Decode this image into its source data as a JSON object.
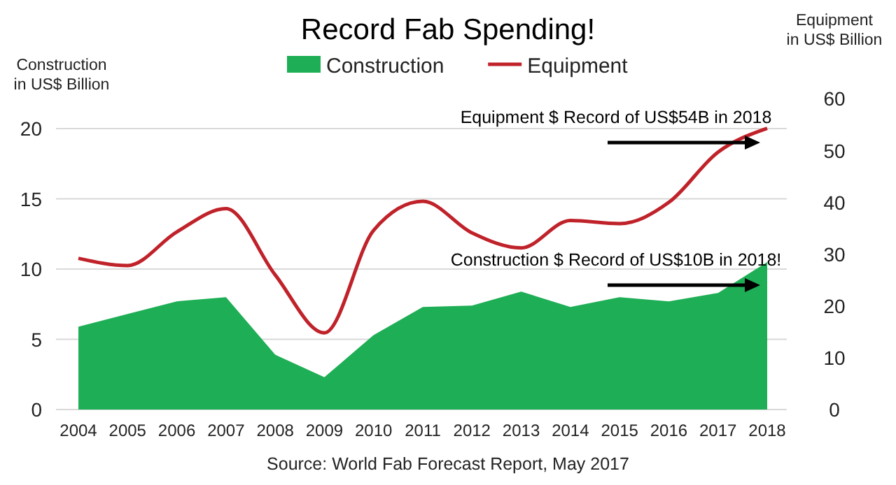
{
  "chart_data": {
    "type": "area",
    "title": "Record Fab Spending!",
    "ylabel": "Construction\nin US$ Billion",
    "y2label": "Equipment\nin US$ Billion",
    "categories": [
      "2004",
      "2005",
      "2006",
      "2007",
      "2008",
      "2009",
      "2010",
      "2011",
      "2012",
      "2013",
      "2014",
      "2015",
      "2016",
      "2017",
      "2018"
    ],
    "series": [
      {
        "name": "Construction",
        "color": "#1eae55",
        "values": [
          5.9,
          6.8,
          7.7,
          8.0,
          3.9,
          2.3,
          5.3,
          7.3,
          7.4,
          8.4,
          7.3,
          8.0,
          7.7,
          8.3,
          10.5
        ]
      },
      {
        "name": "Equipment",
        "type": "line",
        "axis": "y2",
        "color": "#c0222a",
        "values": [
          29.2,
          27.8,
          34.3,
          38.8,
          26,
          14.8,
          34.6,
          40.2,
          34.1,
          31.2,
          36.5,
          35.9,
          40,
          49.7,
          54.3
        ]
      }
    ],
    "ylim": [
      0,
      20
    ],
    "yticks": [
      0,
      5,
      10,
      15,
      20
    ],
    "y2lim": [
      0,
      60
    ],
    "y2ticks": [
      0,
      10,
      20,
      30,
      40,
      50,
      60
    ],
    "grid": "y",
    "legend": "top",
    "marker": "none",
    "line_style": "solid",
    "annotations": [
      "Equipment $ Record of US$54B in 2018",
      "Construction $ Record of US$10B in 2018!",
      "Source: World Fab Forecast Report, May 2017"
    ]
  }
}
